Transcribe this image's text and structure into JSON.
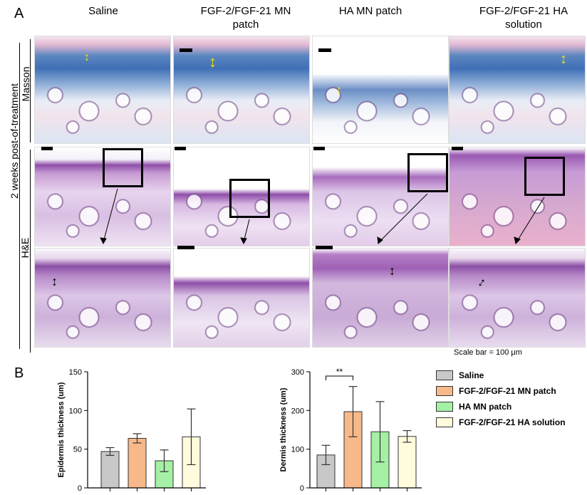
{
  "panel_a": {
    "letter": "A",
    "columns": [
      "Saline",
      "FGF-2/FGF-21 MN\npatch",
      "HA MN patch",
      "FGF-2/FGF-21 HA\nsolution"
    ],
    "side_label": "2 weeks post-of-treatment",
    "row_labels": {
      "masson": "Masson",
      "he": "H&E"
    },
    "scale_text": "Scale bar = 100 μm"
  },
  "panel_b": {
    "letter": "B"
  },
  "colors": {
    "saline": "#c8c8c8",
    "fgf_mn": "#f7b98a",
    "ha_mn": "#a5f0a5",
    "fgf_ha": "#fffbdc"
  },
  "chart_data": [
    {
      "type": "bar",
      "categories": [
        "Saline",
        "FGF-2/FGF-21 MN patch",
        "HA MN patch",
        "FGF-2/FGF-21 HA solution"
      ],
      "values": [
        47,
        64,
        35,
        66
      ],
      "errors": [
        5,
        6,
        14,
        36
      ],
      "ylabel": "Epidermis thickness (um)",
      "ylim": [
        0,
        150
      ],
      "yticks": [
        0,
        50,
        100,
        150
      ],
      "grid": false
    },
    {
      "type": "bar",
      "categories": [
        "Saline",
        "FGF-2/FGF-21 MN patch",
        "HA MN patch",
        "FGF-2/FGF-21 HA solution"
      ],
      "values": [
        85,
        197,
        145,
        133
      ],
      "errors": [
        25,
        65,
        78,
        15
      ],
      "ylabel": "Dermis thickness (um)",
      "ylim": [
        0,
        300
      ],
      "yticks": [
        0,
        100,
        200,
        300
      ],
      "significance": {
        "label": "**",
        "between": [
          0,
          1
        ]
      },
      "grid": false
    }
  ],
  "legend": [
    {
      "label": "Saline",
      "color": "#c8c8c8"
    },
    {
      "label": "FGF-2/FGF-21 MN patch",
      "color": "#f7b98a"
    },
    {
      "label": "HA MN patch",
      "color": "#a5f0a5"
    },
    {
      "label": "FGF-2/FGF-21 HA solution",
      "color": "#fffbdc"
    }
  ]
}
